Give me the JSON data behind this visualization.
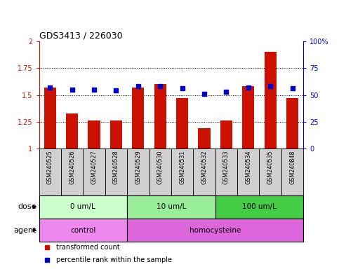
{
  "title": "GDS3413 / 226030",
  "samples": [
    "GSM240525",
    "GSM240526",
    "GSM240527",
    "GSM240528",
    "GSM240529",
    "GSM240530",
    "GSM240531",
    "GSM240532",
    "GSM240533",
    "GSM240534",
    "GSM240535",
    "GSM240848"
  ],
  "bar_values": [
    1.57,
    1.33,
    1.26,
    1.26,
    1.57,
    1.6,
    1.47,
    1.19,
    1.26,
    1.58,
    1.9,
    1.47
  ],
  "blue_values": [
    57,
    55,
    55,
    54,
    58,
    58,
    56,
    51,
    53,
    57,
    58,
    56
  ],
  "bar_color": "#cc1100",
  "blue_color": "#0000cc",
  "ylim_left": [
    1.0,
    2.0
  ],
  "ylim_right": [
    0,
    100
  ],
  "yticks_left": [
    1.0,
    1.25,
    1.5,
    1.75,
    2.0
  ],
  "ytick_labels_left": [
    "1",
    "1.25",
    "1.5",
    "1.75",
    "2"
  ],
  "yticks_right": [
    0,
    25,
    50,
    75,
    100
  ],
  "ytick_labels_right": [
    "0",
    "25",
    "50",
    "75",
    "100%"
  ],
  "hlines": [
    1.25,
    1.5,
    1.75
  ],
  "dose_groups": [
    {
      "label": "0 um/L",
      "start": 0,
      "end": 3,
      "color": "#ccffcc"
    },
    {
      "label": "10 um/L",
      "start": 4,
      "end": 7,
      "color": "#99ee99"
    },
    {
      "label": "100 um/L",
      "start": 8,
      "end": 11,
      "color": "#44cc44"
    }
  ],
  "agent_groups": [
    {
      "label": "control",
      "start": 0,
      "end": 3,
      "color": "#ee88ee"
    },
    {
      "label": "homocysteine",
      "start": 4,
      "end": 11,
      "color": "#dd66dd"
    }
  ],
  "sample_box_color": "#d0d0d0",
  "legend_items": [
    {
      "color": "#cc1100",
      "label": "transformed count"
    },
    {
      "color": "#0000cc",
      "label": "percentile rank within the sample"
    }
  ]
}
